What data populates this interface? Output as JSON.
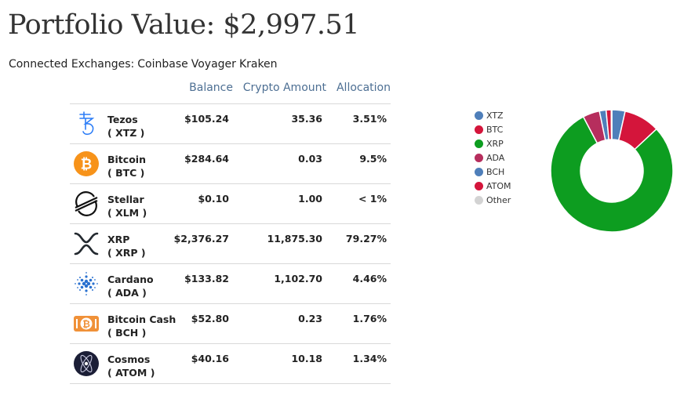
{
  "portfolio": {
    "title": "Portfolio Value: $2,997.51"
  },
  "exchanges": {
    "label": "Connected Exchanges:",
    "items": [
      "Coinbase",
      "Voyager",
      "Kraken"
    ]
  },
  "table": {
    "headers": {
      "balance": "Balance",
      "amount": "Crypto Amount",
      "allocation": "Allocation"
    },
    "rows": [
      {
        "name": "Tezos",
        "symbol": "( XTZ )",
        "balance": "$105.24",
        "amount": "35.36",
        "allocation": "3.51%",
        "icon": "tezos-icon"
      },
      {
        "name": "Bitcoin",
        "symbol": "( BTC )",
        "balance": "$284.64",
        "amount": "0.03",
        "allocation": "9.5%",
        "icon": "bitcoin-icon"
      },
      {
        "name": "Stellar",
        "symbol": "( XLM )",
        "balance": "$0.10",
        "amount": "1.00",
        "allocation": "< 1%",
        "icon": "stellar-icon"
      },
      {
        "name": "XRP",
        "symbol": "( XRP )",
        "balance": "$2,376.27",
        "amount": "11,875.30",
        "allocation": "79.27%",
        "icon": "xrp-icon"
      },
      {
        "name": "Cardano",
        "symbol": "( ADA )",
        "balance": "$133.82",
        "amount": "1,102.70",
        "allocation": "4.46%",
        "icon": "cardano-icon"
      },
      {
        "name": "Bitcoin Cash",
        "symbol": "( BCH )",
        "balance": "$52.80",
        "amount": "0.23",
        "allocation": "1.76%",
        "icon": "bitcoin-cash-icon"
      },
      {
        "name": "Cosmos",
        "symbol": "( ATOM )",
        "balance": "$40.16",
        "amount": "10.18",
        "allocation": "1.34%",
        "icon": "cosmos-icon"
      }
    ]
  },
  "chart_data": {
    "type": "pie",
    "title": "",
    "legend_position": "left",
    "categories": [
      "XTZ",
      "BTC",
      "XRP",
      "ADA",
      "BCH",
      "ATOM",
      "Other"
    ],
    "values": [
      3.51,
      9.5,
      79.27,
      4.46,
      1.76,
      1.34,
      0.16
    ],
    "colors": [
      "#4f7fba",
      "#d4153b",
      "#0d9d20",
      "#b62e5d",
      "#4f7fba",
      "#d4153b",
      "#d3d3d3"
    ]
  },
  "colors": {
    "header_text": "#4d6f93",
    "divider": "#d9d9d9"
  }
}
